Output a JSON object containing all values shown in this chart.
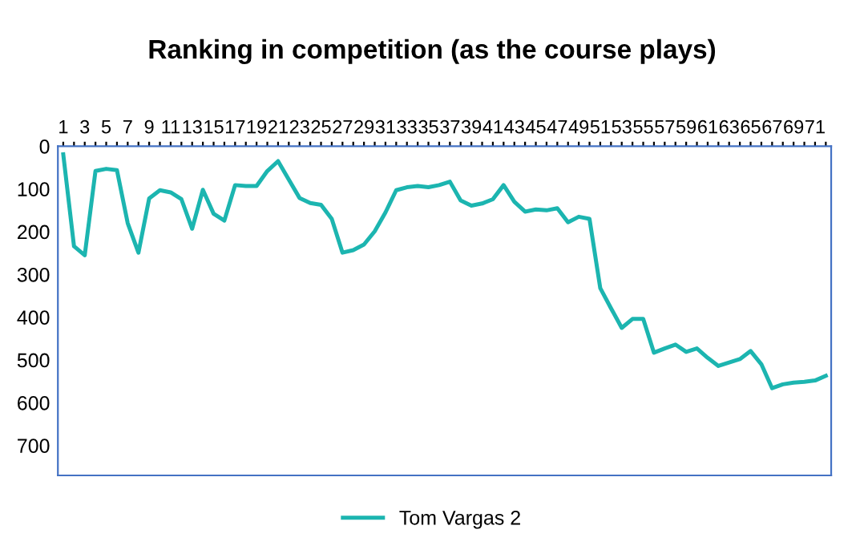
{
  "chart_data": {
    "type": "line",
    "title": "Ranking in competition (as the course plays)",
    "categories": [
      "1",
      null,
      "3",
      null,
      "5",
      null,
      "7",
      null,
      "9",
      null,
      "11",
      null,
      "13",
      null,
      "15",
      null,
      "17",
      null,
      "19",
      null,
      "21",
      null,
      "23",
      null,
      "25",
      null,
      "27",
      null,
      "29",
      null,
      "31",
      null,
      "33",
      null,
      "35",
      null,
      "37",
      null,
      "39",
      null,
      "41",
      null,
      "43",
      null,
      "45",
      null,
      "47",
      null,
      "49",
      null,
      "51",
      null,
      "53",
      null,
      "55",
      null,
      "57",
      null,
      "59",
      null,
      "61",
      null,
      "63",
      null,
      "65",
      null,
      "67",
      null,
      "69",
      null,
      "71",
      null
    ],
    "series": [
      {
        "name": "Tom Vargas 2",
        "color": "#1cb5b0",
        "values": [
          19,
          234,
          255,
          58,
          53,
          56,
          180,
          249,
          122,
          103,
          108,
          124,
          193,
          102,
          158,
          174,
          91,
          93,
          93,
          58,
          35,
          78,
          121,
          133,
          137,
          170,
          249,
          243,
          230,
          199,
          155,
          103,
          96,
          93,
          96,
          91,
          83,
          127,
          139,
          134,
          124,
          91,
          130,
          153,
          148,
          150,
          145,
          178,
          165,
          170,
          332,
          379,
          425,
          404,
          404,
          483,
          473,
          464,
          481,
          473,
          495,
          514,
          506,
          498,
          479,
          510,
          566,
          557,
          553,
          551,
          548,
          537
        ]
      }
    ],
    "ylim": [
      770,
      0
    ],
    "yticks": [
      0,
      100,
      200,
      300,
      400,
      500,
      600,
      700
    ],
    "grid": false,
    "legend": "bottom",
    "marker": "none",
    "line_style": "solid"
  }
}
